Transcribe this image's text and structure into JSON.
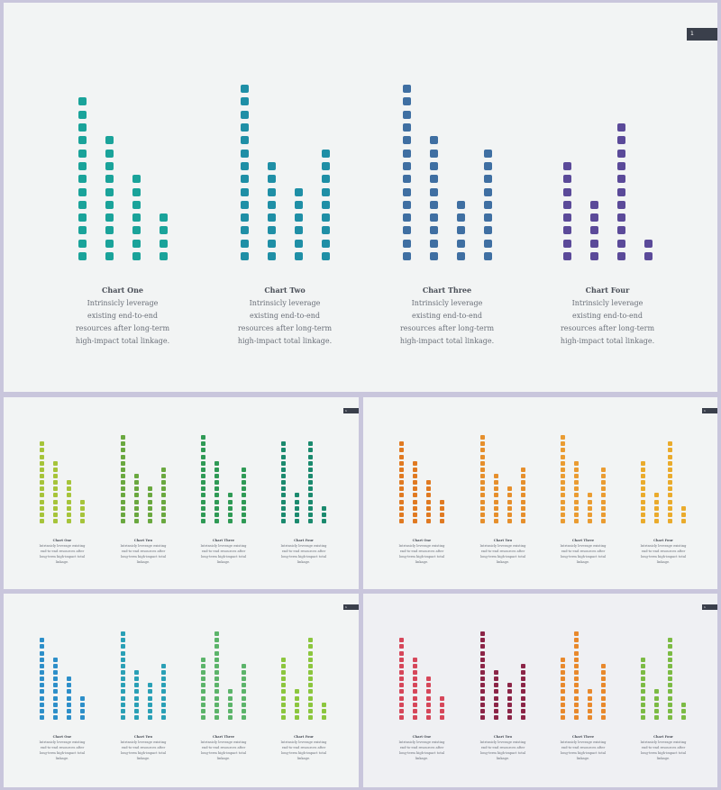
{
  "caption_text": "Intrinsicly leverage existing end-to-end resources after long-term high-impact total linkage.",
  "slides": [
    {
      "badge": "1",
      "charts": [
        {
          "title": "Chart One",
          "color": "#1aa39a",
          "values": [
            13,
            10,
            7,
            4
          ]
        },
        {
          "title": "Chart Two",
          "color": "#1f8fa6",
          "values": [
            14,
            8,
            6,
            9
          ]
        },
        {
          "title": "Chart Three",
          "color": "#3f6fa2",
          "values": [
            14,
            10,
            5,
            9
          ]
        },
        {
          "title": "Chart Four",
          "color": "#5b4a99",
          "values": [
            8,
            5,
            11,
            2
          ]
        }
      ]
    },
    {
      "badge": "1",
      "charts": [
        {
          "title": "Chart One",
          "color": "#a6c43a",
          "values": [
            13,
            10,
            7,
            4
          ]
        },
        {
          "title": "Chart Two",
          "color": "#6aa83f",
          "values": [
            14,
            8,
            6,
            9
          ]
        },
        {
          "title": "Chart Three",
          "color": "#2f9a55",
          "values": [
            14,
            10,
            5,
            9
          ]
        },
        {
          "title": "Chart Four",
          "color": "#1b8a6e",
          "values": [
            13,
            5,
            13,
            3
          ]
        }
      ]
    },
    {
      "badge": "1",
      "charts": [
        {
          "title": "Chart One",
          "color": "#e07a22",
          "values": [
            13,
            10,
            7,
            4
          ]
        },
        {
          "title": "Chart Two",
          "color": "#e68f2c",
          "values": [
            14,
            8,
            6,
            9
          ]
        },
        {
          "title": "Chart Three",
          "color": "#ea9c32",
          "values": [
            14,
            10,
            5,
            9
          ]
        },
        {
          "title": "Chart Four",
          "color": "#eaab2c",
          "values": [
            10,
            5,
            13,
            3
          ]
        }
      ]
    },
    {
      "badge": "1",
      "charts": [
        {
          "title": "Chart One",
          "color": "#2d8fc9",
          "values": [
            13,
            10,
            7,
            4
          ]
        },
        {
          "title": "Chart Two",
          "color": "#2aa0b6",
          "values": [
            14,
            8,
            6,
            9
          ]
        },
        {
          "title": "Chart Three",
          "color": "#5cb46a",
          "values": [
            10,
            14,
            5,
            9
          ]
        },
        {
          "title": "Chart Four",
          "color": "#8cc63e",
          "values": [
            10,
            5,
            13,
            3
          ]
        }
      ]
    },
    {
      "badge": "1",
      "charts": [
        {
          "title": "Chart One",
          "color": "#d6475a",
          "values": [
            13,
            10,
            7,
            4
          ]
        },
        {
          "title": "Chart Two",
          "color": "#8c2547",
          "values": [
            14,
            8,
            6,
            9
          ]
        },
        {
          "title": "Chart Three",
          "color": "#e8892c",
          "values": [
            10,
            14,
            5,
            9
          ]
        },
        {
          "title": "Chart Four",
          "color": "#7cbb44",
          "values": [
            10,
            5,
            13,
            3
          ]
        }
      ]
    }
  ]
}
